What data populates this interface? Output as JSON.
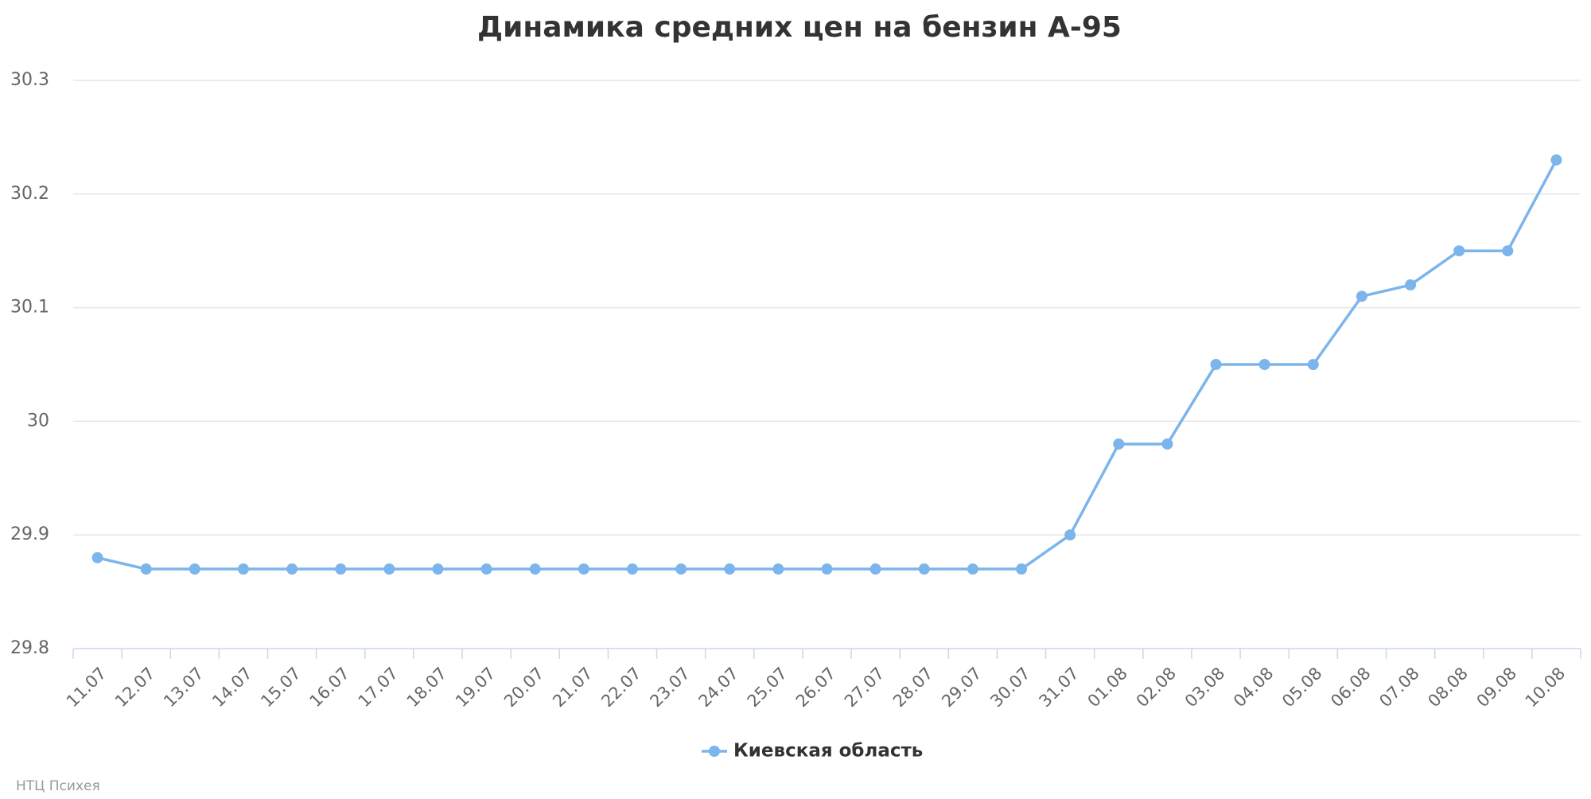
{
  "chart_data": {
    "type": "line",
    "title": "Динамика средних цен на бензин А-95",
    "categories": [
      "11.07",
      "12.07",
      "13.07",
      "14.07",
      "15.07",
      "16.07",
      "17.07",
      "18.07",
      "19.07",
      "20.07",
      "21.07",
      "22.07",
      "23.07",
      "24.07",
      "25.07",
      "26.07",
      "27.07",
      "28.07",
      "29.07",
      "30.07",
      "31.07",
      "01.08",
      "02.08",
      "03.08",
      "04.08",
      "05.08",
      "06.08",
      "07.08",
      "08.08",
      "09.08",
      "10.08"
    ],
    "series": [
      {
        "name": "Киевская область",
        "color": "#7cb5ec",
        "values": [
          29.88,
          29.87,
          29.87,
          29.87,
          29.87,
          29.87,
          29.87,
          29.87,
          29.87,
          29.87,
          29.87,
          29.87,
          29.87,
          29.87,
          29.87,
          29.87,
          29.87,
          29.87,
          29.87,
          29.87,
          29.9,
          29.98,
          29.98,
          30.05,
          30.05,
          30.05,
          30.11,
          30.12,
          30.15,
          30.15,
          30.23
        ]
      }
    ],
    "ylim": [
      29.8,
      30.3
    ],
    "yticks": [
      29.8,
      29.9,
      30,
      30.1,
      30.2,
      30.3
    ],
    "grid": true,
    "legend": "bottom",
    "credits": "НТЦ Психея"
  }
}
